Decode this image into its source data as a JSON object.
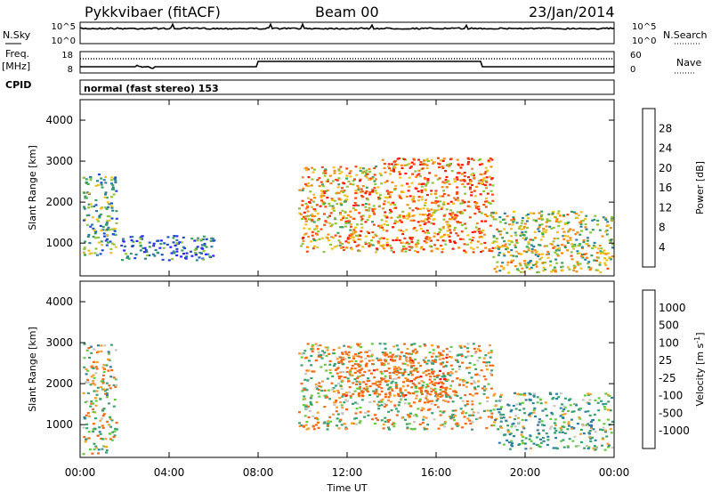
{
  "header": {
    "station": "Pykkvibaer (fitACF)",
    "beam": "Beam 00",
    "date": "23/Jan/2014"
  },
  "top_panels": {
    "nsky_label": "N.Sky",
    "nsky_ticks": [
      "10^5",
      "10^0"
    ],
    "nsearch_ticks": [
      "10^5",
      "10^0"
    ],
    "nsearch_label": "N.Search",
    "freq_label_1": "Freq.",
    "freq_label_2": "[MHz]",
    "freq_ticks": [
      "18",
      "8"
    ],
    "nave_ticks": [
      "60",
      "0"
    ],
    "nave_label": "Nave",
    "cpid_label": "CPID",
    "cpid_text": "normal (fast stereo) 153"
  },
  "chart_data": [
    {
      "type": "heatmap",
      "panel": "power",
      "ylabel": "Slant Range [km]",
      "ylim": [
        200,
        4500
      ],
      "y_ticks": [
        "4000",
        "3000",
        "2000",
        "1000"
      ],
      "x_ticks": [
        "00:00",
        "04:00",
        "08:00",
        "12:00",
        "16:00",
        "20:00",
        "00:00"
      ],
      "colorbar": {
        "label": "Power [dB]",
        "ticks": [
          "28",
          "24",
          "20",
          "16",
          "12",
          "8",
          "4"
        ],
        "colors": [
          "#2828ff",
          "#1f4fc8",
          "#2f7f9a",
          "#3a9e5c",
          "#8fc43c",
          "#f0c020",
          "#f28a1a",
          "#f04a12",
          "#ff1a0a"
        ]
      },
      "regions": [
        {
          "x": [
            0.1,
            1.6
          ],
          "y": [
            700,
            2700
          ],
          "value": 14
        },
        {
          "x": [
            1.8,
            6.0
          ],
          "y": [
            600,
            1200
          ],
          "value": 9
        },
        {
          "x": [
            9.8,
            13.5
          ],
          "y": [
            800,
            2900
          ],
          "value": 22
        },
        {
          "x": [
            13.5,
            18.5
          ],
          "y": [
            800,
            3100
          ],
          "value": 24
        },
        {
          "x": [
            18.5,
            23.9
          ],
          "y": [
            300,
            1800
          ],
          "value": 18
        }
      ]
    },
    {
      "type": "heatmap",
      "panel": "velocity",
      "ylabel": "Slant Range [km]",
      "ylim": [
        200,
        4500
      ],
      "y_ticks": [
        "4000",
        "3000",
        "2000",
        "1000"
      ],
      "x_ticks": [
        "00:00",
        "04:00",
        "08:00",
        "12:00",
        "16:00",
        "20:00",
        "00:00"
      ],
      "xlabel": "Time UT",
      "colorbar": {
        "label": "Velocity [m s",
        "label_sup": "-1",
        "label_end": "]",
        "ticks": [
          "1000",
          "500",
          "100",
          "25",
          "-25",
          "-100",
          "-500",
          "-1000"
        ],
        "colors": [
          "#2c46b4",
          "#2f7fa0",
          "#3aa070",
          "#66c840",
          "#c8c6c0",
          "#f0a030",
          "#f06a18",
          "#ff1010"
        ]
      },
      "regions": [
        {
          "x": [
            0.1,
            1.6
          ],
          "y": [
            300,
            3000
          ],
          "value": 25
        },
        {
          "x": [
            9.8,
            18.5
          ],
          "y": [
            900,
            3000
          ],
          "value": 0
        },
        {
          "x": [
            11.5,
            16.5
          ],
          "y": [
            1700,
            2800
          ],
          "value": -300
        },
        {
          "x": [
            18.5,
            23.9
          ],
          "y": [
            400,
            1800
          ],
          "value": 150
        }
      ]
    }
  ]
}
